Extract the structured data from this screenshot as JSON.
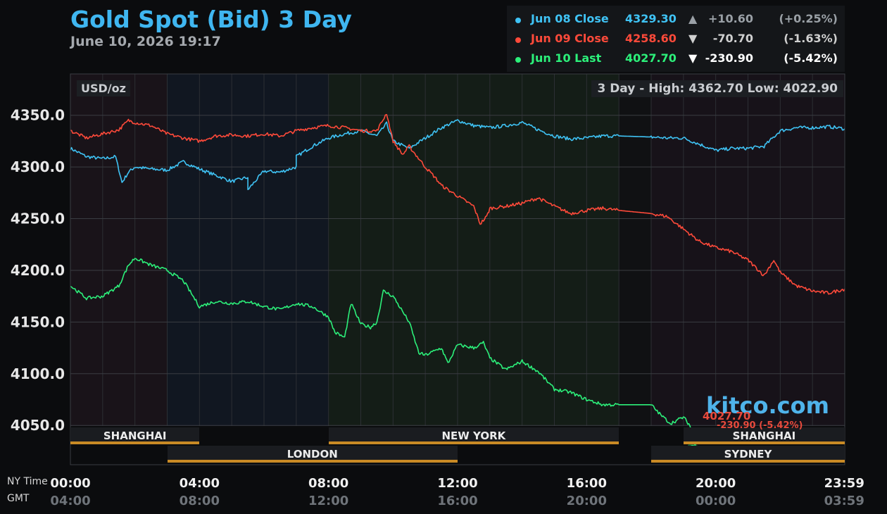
{
  "header": {
    "title": "Gold Spot (Bid) 3 Day",
    "datetime": "June 10, 2026 19:17"
  },
  "legend": [
    {
      "name": "Jun 08 Close",
      "price": "4329.30",
      "arrow": "▲",
      "change": "+10.60",
      "pct": "(+0.25%)",
      "color": "#3fc3f5",
      "change_color": "#9aa0a6"
    },
    {
      "name": "Jun 09 Close",
      "price": "4258.60",
      "arrow": "▼",
      "change": "-70.70",
      "pct": "(-1.63%)",
      "color": "#ff4a3a",
      "change_color": "#d0d0d0"
    },
    {
      "name": "Jun 10 Last",
      "price": "4027.70",
      "arrow": "▼",
      "change": "-230.90",
      "pct": "(-5.42%)",
      "color": "#2cf07a",
      "change_color": "#ffffff"
    }
  ],
  "plot": {
    "unit": "USD/oz",
    "range_text": "3 Day - High: 4362.70  Low: 4022.90",
    "watermark": "kitco.com",
    "last_price": "4027.70",
    "last_change": "-230.90 (-5.42%)"
  },
  "sessions": [
    {
      "name": "SHANGHAI",
      "start": 0,
      "end": 4,
      "row": 1
    },
    {
      "name": "NEW YORK",
      "start": 8,
      "end": 17,
      "row": 1
    },
    {
      "name": "SHANGHAI",
      "start": 19,
      "end": 24,
      "row": 1
    },
    {
      "name": "LONDON",
      "start": 3,
      "end": 12,
      "row": 2
    },
    {
      "name": "SYDNEY",
      "start": 18,
      "end": 24,
      "row": 2
    }
  ],
  "axis_labels": {
    "ny_time": "NY Time",
    "gmt": "GMT"
  },
  "chart_data": {
    "type": "line",
    "ylim": [
      4012,
      4390
    ],
    "xlim": [
      0,
      24
    ],
    "yticks": [
      4050.0,
      4100.0,
      4150.0,
      4200.0,
      4250.0,
      4300.0,
      4350.0
    ],
    "ytick_labels": [
      "4050.0",
      "4100.0",
      "4150.0",
      "4200.0",
      "4250.0",
      "4300.0",
      "4350.0"
    ],
    "xticks": [
      0,
      4,
      8,
      12,
      16,
      20,
      23.983
    ],
    "xtick_labels_ny": [
      "00:00",
      "04:00",
      "08:00",
      "12:00",
      "16:00",
      "20:00",
      "23:59"
    ],
    "xtick_labels_gmt": [
      "04:00",
      "08:00",
      "12:00",
      "16:00",
      "20:00",
      "00:00",
      "03:59"
    ],
    "grid": true,
    "series": [
      {
        "name": "Jun 08 Close",
        "color": "#3fc3f5",
        "x": [
          0,
          0.5,
          1,
          1.4,
          1.6,
          1.8,
          2.0,
          2.5,
          3.0,
          3.5,
          4.0,
          4.5,
          5.0,
          5.5,
          5.5,
          6.0,
          6.5,
          7.0,
          7.0,
          7.5,
          8.0,
          8.5,
          9.0,
          9.5,
          9.8,
          10.0,
          10.5,
          11.0,
          11.5,
          12.0,
          12.5,
          13.0,
          13.5,
          14.0,
          14.5,
          15.0,
          15.5,
          16.0,
          16.5,
          17.0,
          18.0,
          18.5,
          19.0,
          19.5,
          20.0,
          20.5,
          21.0,
          21.5,
          22.0,
          22.5,
          23.0,
          23.5,
          24.0
        ],
        "y": [
          4318,
          4310,
          4308,
          4310,
          4285,
          4295,
          4300,
          4298,
          4297,
          4305,
          4298,
          4292,
          4286,
          4290,
          4278,
          4296,
          4295,
          4300,
          4310,
          4320,
          4328,
          4332,
          4335,
          4330,
          4342,
          4325,
          4318,
          4328,
          4338,
          4345,
          4340,
          4338,
          4340,
          4343,
          4336,
          4330,
          4327,
          4328,
          4330,
          4330,
          4329,
          4328,
          4328,
          4322,
          4316,
          4318,
          4318,
          4320,
          4335,
          4338,
          4338,
          4339,
          4337
        ]
      },
      {
        "name": "Jun 09 Close",
        "color": "#ff4a3a",
        "x": [
          0,
          0.5,
          1,
          1.5,
          1.8,
          2.0,
          2.5,
          3.0,
          3.5,
          4.0,
          4.5,
          5.0,
          5.5,
          6.0,
          6.5,
          7.0,
          7.5,
          8.0,
          8.5,
          9.0,
          9.5,
          9.8,
          10.0,
          10.3,
          10.5,
          11.0,
          11.3,
          11.5,
          12.0,
          12.5,
          12.7,
          12.9,
          13.0,
          13.5,
          14.0,
          14.5,
          15.0,
          15.5,
          16.0,
          16.5,
          17.0,
          18.0,
          18.5,
          19.0,
          19.5,
          20.0,
          20.5,
          21.0,
          21.5,
          21.8,
          22.0,
          22.5,
          23.0,
          23.5,
          24.0
        ],
        "y": [
          4335,
          4328,
          4332,
          4336,
          4345,
          4343,
          4340,
          4332,
          4328,
          4325,
          4330,
          4331,
          4330,
          4332,
          4330,
          4335,
          4338,
          4340,
          4338,
          4335,
          4335,
          4352,
          4325,
          4312,
          4320,
          4300,
          4290,
          4282,
          4272,
          4262,
          4245,
          4252,
          4260,
          4262,
          4265,
          4270,
          4262,
          4255,
          4258,
          4260,
          4258,
          4255,
          4252,
          4240,
          4228,
          4222,
          4218,
          4210,
          4195,
          4210,
          4198,
          4185,
          4180,
          4178,
          4182
        ]
      },
      {
        "name": "Jun 10 Last",
        "color": "#2cf07a",
        "x": [
          0,
          0.5,
          1,
          1.5,
          1.8,
          2.0,
          2.5,
          3.0,
          3.5,
          4.0,
          4.5,
          5.0,
          5.5,
          6.0,
          6.5,
          7.0,
          7.5,
          8.0,
          8.2,
          8.5,
          8.7,
          9.0,
          9.3,
          9.5,
          9.7,
          10.0,
          10.5,
          10.8,
          11.0,
          11.5,
          11.7,
          12.0,
          12.5,
          12.8,
          13.0,
          13.5,
          14.0,
          14.5,
          15.0,
          15.5,
          16.0,
          16.5,
          17.0,
          18.0,
          18.3,
          18.6,
          19.0,
          19.2,
          19.4
        ],
        "y": [
          4185,
          4173,
          4175,
          4185,
          4205,
          4212,
          4205,
          4200,
          4190,
          4165,
          4170,
          4168,
          4170,
          4165,
          4162,
          4168,
          4165,
          4155,
          4140,
          4135,
          4168,
          4148,
          4145,
          4150,
          4180,
          4175,
          4150,
          4120,
          4118,
          4125,
          4110,
          4128,
          4125,
          4130,
          4115,
          4104,
          4112,
          4102,
          4085,
          4082,
          4075,
          4070,
          4070,
          4070,
          4060,
          4052,
          4058,
          4050,
          4028
        ]
      }
    ],
    "last_point": {
      "x": 19.283,
      "y": 4027.7
    }
  }
}
